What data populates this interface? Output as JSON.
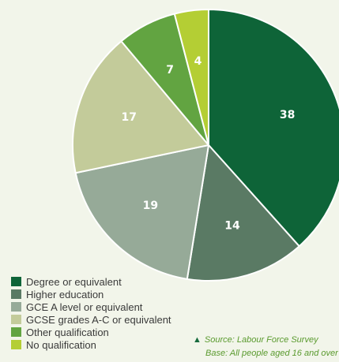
{
  "chart_data": {
    "type": "pie",
    "title": "",
    "start_angle_deg": 0,
    "direction": "clockwise",
    "legend_placement": "bottom-left",
    "slices": [
      {
        "label": "Degree or equivalent",
        "value": 38,
        "color": "#0e6438"
      },
      {
        "label": "Higher education",
        "value": 14,
        "color": "#5a7a64"
      },
      {
        "label": "GCE A level or equivalent",
        "value": 19,
        "color": "#96aa98"
      },
      {
        "label": "GCSE grades A-C or equivalent",
        "value": 17,
        "color": "#c3cb9a"
      },
      {
        "label": "Other qualification",
        "value": 7,
        "color": "#62a441"
      },
      {
        "label": "No qualification",
        "value": 4,
        "color": "#b4ce34"
      }
    ]
  },
  "source": {
    "marker_color": "#166a3c",
    "line1": "Source: Labour Force Survey",
    "line2": "Base: All people aged 16 and over"
  }
}
